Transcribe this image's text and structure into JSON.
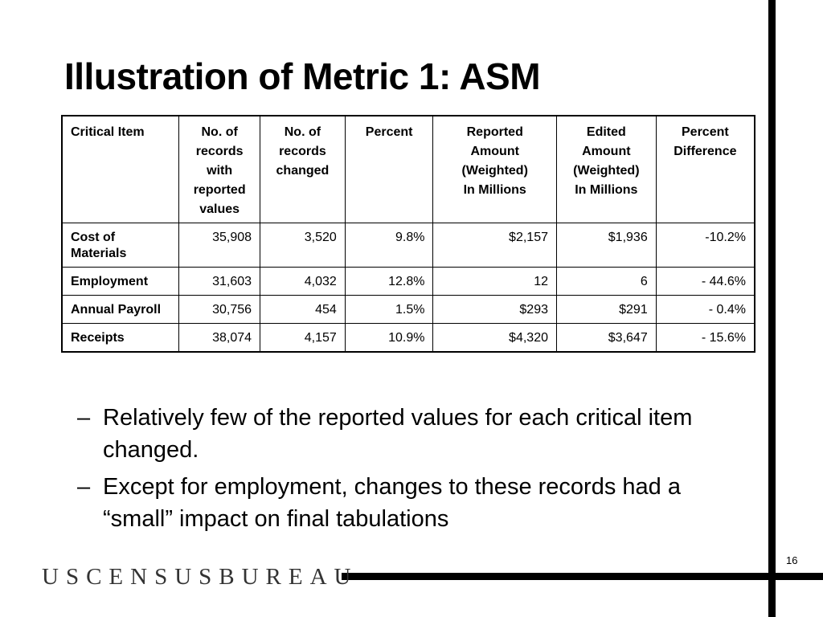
{
  "slide": {
    "title": "Illustration of Metric 1: ASM",
    "page_number": "16",
    "logo_text": "USCENSUSBUREAU"
  },
  "table": {
    "headers": [
      [
        "Critical Item"
      ],
      [
        "No. of records with reported values"
      ],
      [
        "No.  of records changed"
      ],
      [
        "Percent"
      ],
      [
        "Reported",
        "Amount",
        "(Weighted)",
        "In Millions"
      ],
      [
        "Edited",
        "Amount",
        "(Weighted)",
        "In Millions"
      ],
      [
        "Percent",
        "Difference"
      ]
    ],
    "rows": [
      {
        "item": "Cost of Materials",
        "with_values": "35,908",
        "changed": "3,520",
        "percent": "9.8%",
        "reported": "$2,157",
        "edited": "$1,936",
        "difference": "-10.2%"
      },
      {
        "item": "Employment",
        "with_values": "31,603",
        "changed": "4,032",
        "percent": "12.8%",
        "reported": "12",
        "edited": "6",
        "difference": "- 44.6%"
      },
      {
        "item": "Annual Payroll",
        "with_values": "30,756",
        "changed": "454",
        "percent": "1.5%",
        "reported": "$293",
        "edited": "$291",
        "difference": "- 0.4%"
      },
      {
        "item": "Receipts",
        "with_values": "38,074",
        "changed": "4,157",
        "percent": "10.9%",
        "reported": "$4,320",
        "edited": "$3,647",
        "difference": "- 15.6%"
      }
    ]
  },
  "bullets": [
    {
      "marker": "–",
      "text": "Relatively few of the reported values for each critical item changed."
    },
    {
      "marker": "–",
      "text": "Except for employment, changes to these records had a “small” impact on final tabulations"
    }
  ]
}
